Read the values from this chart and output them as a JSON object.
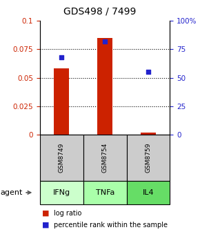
{
  "title": "GDS498 / 7499",
  "samples": [
    "GSM8749",
    "GSM8754",
    "GSM8759"
  ],
  "agents": [
    "IFNg",
    "TNFa",
    "IL4"
  ],
  "log_ratio": [
    0.058,
    0.085,
    0.002
  ],
  "percentile_rank": [
    0.68,
    0.82,
    0.55
  ],
  "bar_color": "#cc2200",
  "dot_color": "#2222cc",
  "ylim_left": [
    0,
    0.1
  ],
  "ylim_right": [
    0,
    1.0
  ],
  "yticks_left": [
    0,
    0.025,
    0.05,
    0.075,
    0.1
  ],
  "yticks_right": [
    0,
    0.25,
    0.5,
    0.75,
    1.0
  ],
  "ytick_labels_left": [
    "0",
    "0.025",
    "0.05",
    "0.075",
    "0.1"
  ],
  "ytick_labels_right": [
    "0",
    "25",
    "50",
    "75",
    "100%"
  ],
  "agent_colors": [
    "#ccffcc",
    "#aaffaa",
    "#66dd66"
  ],
  "sample_bg": "#cccccc",
  "bar_width": 0.35
}
